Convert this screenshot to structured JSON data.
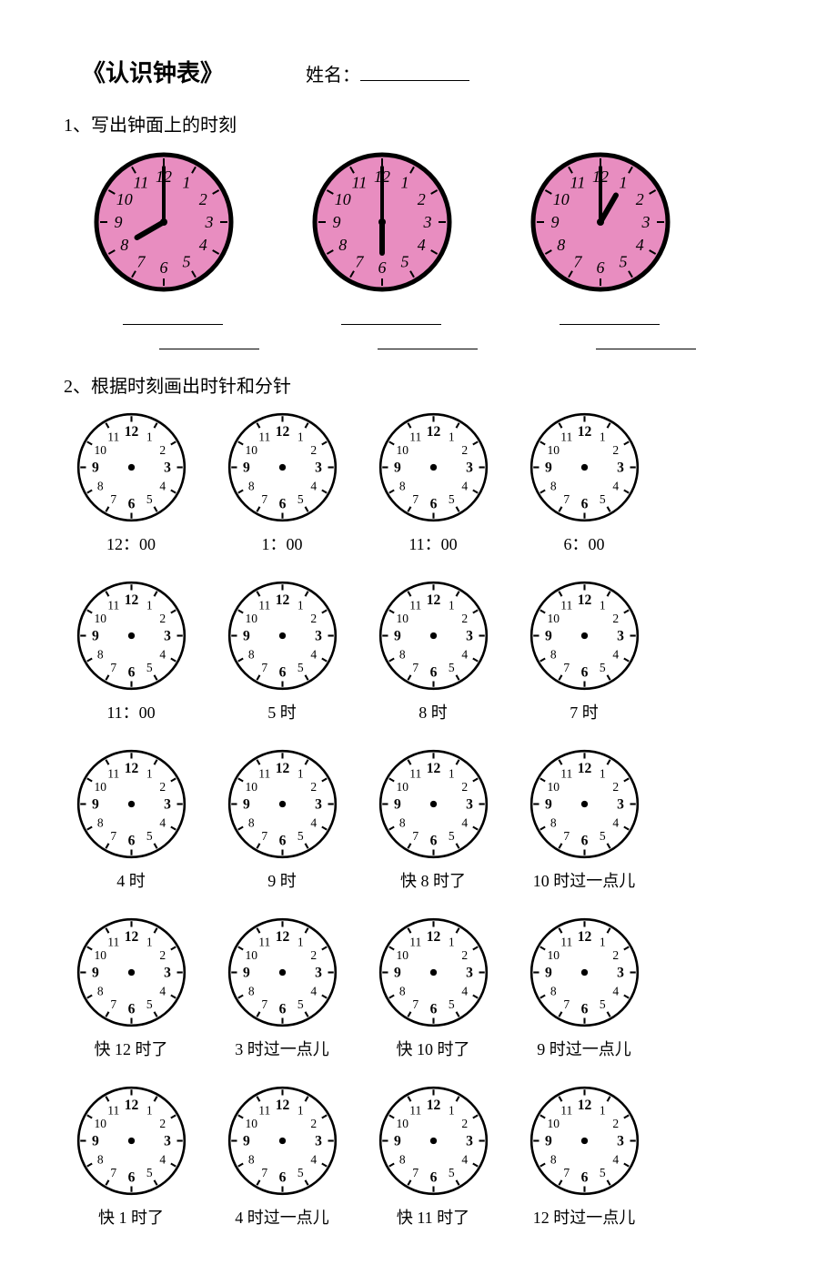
{
  "header": {
    "title": "《认识钟表》",
    "name_label": "姓名："
  },
  "q1": {
    "heading": "1、写出钟面上的时刻",
    "clock_face_color": "#e88dc0",
    "clock_border_color": "#000000",
    "hand_color": "#000000",
    "numeral_font": "italic 13px serif",
    "clocks": [
      {
        "hour": 8,
        "minute": 0
      },
      {
        "hour": 6,
        "minute": 0
      },
      {
        "hour": 1,
        "minute": 0
      }
    ]
  },
  "q2": {
    "heading": "2、根据时刻画出时针和分针",
    "clock_face_color": "#ffffff",
    "clock_border_color": "#000000",
    "numeral_color": "#000000",
    "rows": [
      [
        "12：00",
        "1：00",
        "11：00",
        "6：00",
        "11：00"
      ],
      [
        "5 时",
        "8 时",
        "7 时",
        "4 时",
        "9 时"
      ],
      [
        "快 8 时了",
        "10 时过一点儿",
        "快 12 时了",
        "3 时过一点儿",
        "快 10 时了"
      ],
      [
        "9 时过一点儿",
        "快 1 时了",
        "4 时过一点儿",
        "快 11 时了",
        "12 时过一点儿"
      ]
    ]
  }
}
